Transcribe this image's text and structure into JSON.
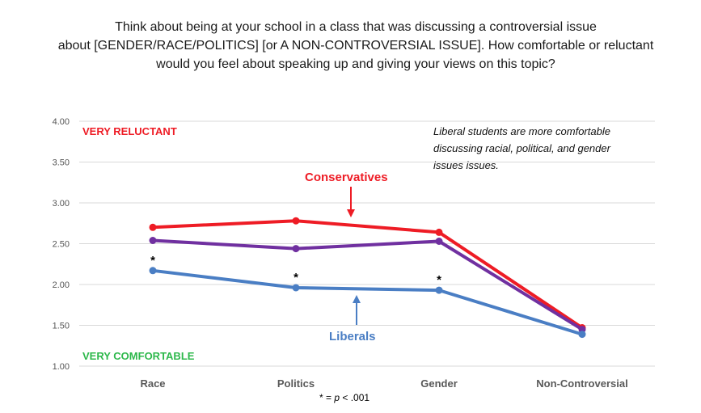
{
  "chart_data": {
    "type": "line",
    "title_lines": [
      "Think about being at your school in a class that was discussing a controversial issue",
      "about [GENDER/RACE/POLITICS] [or A NON-CONTROVERSIAL ISSUE]. How comfortable or reluctant",
      "would you feel about speaking up and giving your views on this topic?"
    ],
    "categories": [
      "Race",
      "Politics",
      "Gender",
      "Non-Controversial"
    ],
    "ylim": [
      1.0,
      4.0
    ],
    "yticks": [
      "1.00",
      "1.50",
      "2.00",
      "2.50",
      "3.00",
      "3.50",
      "4.00"
    ],
    "grid": true,
    "series": [
      {
        "key": "conservatives",
        "name": "Conservatives",
        "color": "#ee1c25",
        "values": [
          2.7,
          2.78,
          2.64,
          1.47
        ]
      },
      {
        "key": "middle",
        "color": "#7030a0",
        "values": [
          2.54,
          2.44,
          2.53,
          1.45
        ]
      },
      {
        "key": "liberals",
        "name": "Liberals",
        "color": "#4a7ec4",
        "values": [
          2.17,
          1.96,
          1.93,
          1.39
        ]
      }
    ],
    "zone_labels": {
      "top": {
        "text": "VERY RELUCTANT",
        "color": "#ee1c25"
      },
      "bottom": {
        "text": "VERY COMFORTABLE",
        "color": "#2db84b"
      }
    },
    "annotation_lines": [
      "Liberal students are more comfortable",
      "discussing racial, political, and gender",
      "issues issues."
    ],
    "significance_marker": "*",
    "significant_categories": [
      "Race",
      "Politics",
      "Gender"
    ],
    "footnote": {
      "prefix": "* = ",
      "symbol": "p",
      "suffix": " < .001"
    }
  }
}
